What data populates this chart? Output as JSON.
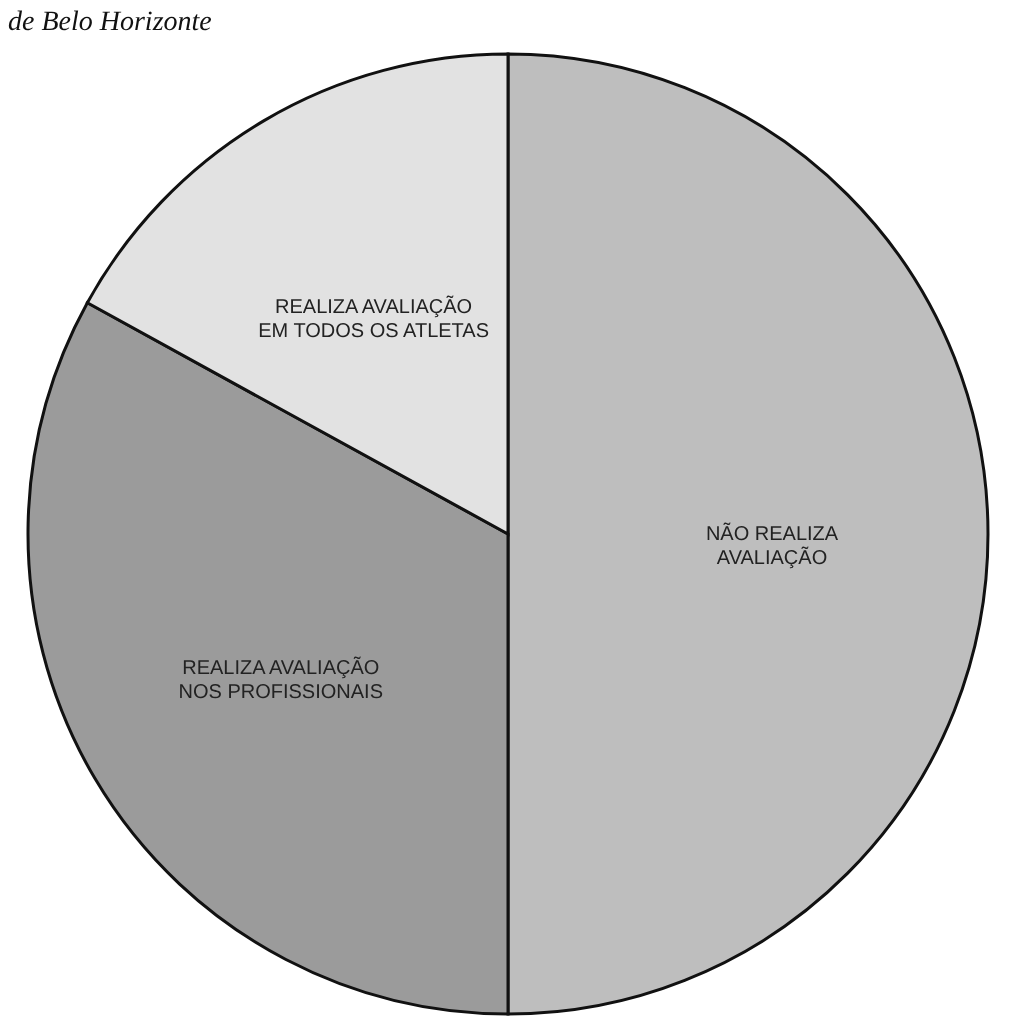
{
  "chart_data": {
    "type": "pie",
    "title": "de Belo Horizonte",
    "categories": [
      "NÃO REALIZA\nAVALIAÇÃO",
      "REALIZA AVALIAÇÃO\nNOS PROFISSIONAIS",
      "REALIZA AVALIAÇÃO\nEM TODOS OS ATLETAS"
    ],
    "values": [
      50,
      33,
      17
    ],
    "colors": [
      "#bebebe",
      "#9b9b9b",
      "#e2e2e2"
    ],
    "legend": false
  }
}
